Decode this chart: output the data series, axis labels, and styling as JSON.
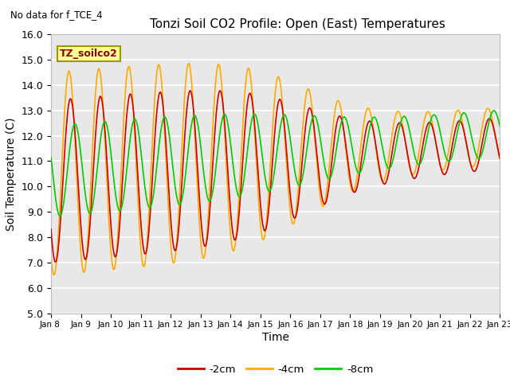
{
  "title": "Tonzi Soil CO2 Profile: Open (East) Temperatures",
  "subtitle": "No data for f_TCE_4",
  "xlabel": "Time",
  "ylabel": "Soil Temperature (C)",
  "ylim": [
    5.0,
    16.0
  ],
  "yticks": [
    5.0,
    6.0,
    7.0,
    8.0,
    9.0,
    10.0,
    11.0,
    12.0,
    13.0,
    14.0,
    15.0,
    16.0
  ],
  "legend_label": "TZ_soilco2",
  "series_labels": [
    "-2cm",
    "-4cm",
    "-8cm"
  ],
  "series_colors": [
    "#cc0000",
    "#ffaa00",
    "#00cc00"
  ],
  "plot_bg_color": "#e8e8e8",
  "box_color": "#ffff99",
  "box_edge_color": "#999900",
  "figsize": [
    6.4,
    4.8
  ],
  "dpi": 100
}
